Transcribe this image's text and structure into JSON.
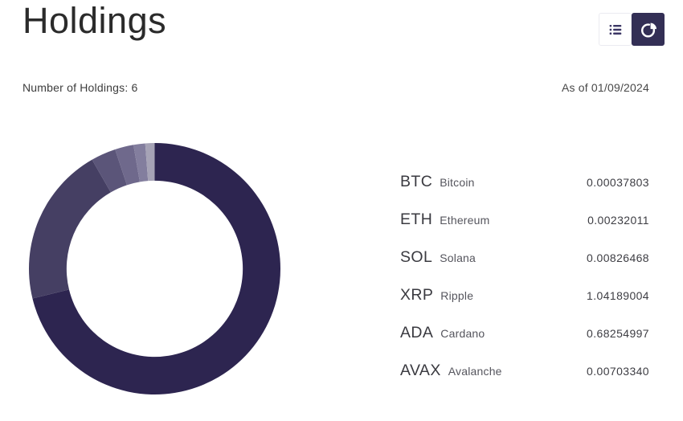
{
  "page": {
    "title": "Holdings"
  },
  "toolbar": {
    "view_toggle": [
      {
        "id": "list-view",
        "icon": "list-icon",
        "selected": false
      },
      {
        "id": "chart-view",
        "icon": "pie-chart-icon",
        "selected": true
      }
    ]
  },
  "summary": {
    "holdings_count_label": "Number of Holdings: 6",
    "as_of_label": "As of 01/09/2024"
  },
  "holdings": [
    {
      "ticker": "BTC",
      "name": "Bitcoin",
      "quantity": "0.00037803"
    },
    {
      "ticker": "ETH",
      "name": "Ethereum",
      "quantity": "0.00232011"
    },
    {
      "ticker": "SOL",
      "name": "Solana",
      "quantity": "0.00826468"
    },
    {
      "ticker": "XRP",
      "name": "Ripple",
      "quantity": "1.04189004"
    },
    {
      "ticker": "ADA",
      "name": "Cardano",
      "quantity": "0.68254997"
    },
    {
      "ticker": "AVAX",
      "name": "Avalanche",
      "quantity": "0.00703340"
    }
  ],
  "chart_data": {
    "type": "pie",
    "style": "donut",
    "start_angle_deg": 0,
    "direction": "clockwise",
    "inner_outer_ratio": 0.7,
    "legend_position": "none",
    "segments": [
      {
        "label": "BTC",
        "share_pct": 71.2,
        "color": "#2d2550"
      },
      {
        "label": "ETH",
        "share_pct": 20.5,
        "color": "#453f63"
      },
      {
        "label": "SOL",
        "share_pct": 3.2,
        "color": "#5b5579"
      },
      {
        "label": "XRP",
        "share_pct": 2.4,
        "color": "#6f698c"
      },
      {
        "label": "ADA",
        "share_pct": 1.5,
        "color": "#837e9e"
      },
      {
        "label": "AVAX",
        "share_pct": 1.2,
        "color": "#a6a3b6"
      }
    ]
  },
  "colors": {
    "accent_dark": "#332f55",
    "icon": "#3b3665",
    "title_text": "#2b2b2b",
    "background": "#ffffff"
  }
}
